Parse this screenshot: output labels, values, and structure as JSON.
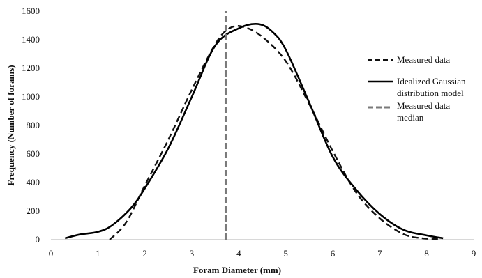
{
  "chart_data": {
    "type": "line",
    "title": "",
    "xlabel": "Foram Diameter (mm)",
    "ylabel": "Frequency (Number of forams)",
    "xlim": [
      0,
      9
    ],
    "ylim": [
      0,
      1600
    ],
    "xticks": [
      0,
      1,
      2,
      3,
      4,
      5,
      6,
      7,
      8,
      9
    ],
    "yticks": [
      0,
      200,
      400,
      600,
      800,
      1000,
      1200,
      1400,
      1600
    ],
    "grid": false,
    "legend_position": "right",
    "series": [
      {
        "name": "Measured data",
        "style": "dashed",
        "color": "#111111",
        "x": [
          1.25,
          1.6,
          2.0,
          2.5,
          3.0,
          3.5,
          3.8,
          4.1,
          4.5,
          5.0,
          5.5,
          6.0,
          6.5,
          7.0,
          7.5,
          7.9,
          8.3
        ],
        "y": [
          0,
          120,
          380,
          700,
          1050,
          1370,
          1480,
          1490,
          1420,
          1250,
          950,
          620,
          330,
          150,
          40,
          10,
          5
        ]
      },
      {
        "name": "Idealized Gaussian distribution model",
        "style": "solid",
        "color": "#000000",
        "x": [
          0.3,
          0.6,
          1.0,
          1.3,
          1.7,
          2.0,
          2.5,
          3.0,
          3.5,
          4.0,
          4.4,
          4.7,
          5.0,
          5.5,
          6.0,
          6.5,
          7.0,
          7.5,
          8.0,
          8.35
        ],
        "y": [
          10,
          35,
          55,
          100,
          220,
          360,
          640,
          1000,
          1360,
          1480,
          1510,
          1460,
          1330,
          960,
          580,
          350,
          180,
          70,
          30,
          10
        ]
      },
      {
        "name": "Measured data median",
        "style": "dashed-vertical",
        "color": "#7a7a7a",
        "x": [
          3.72,
          3.72
        ],
        "y": [
          0,
          1600
        ]
      }
    ],
    "legend": [
      {
        "label": "Measured data",
        "style": "dashed"
      },
      {
        "label": "Idealized Gaussian distribution model",
        "line1": "Idealized Gaussian",
        "line2": "distribution model",
        "style": "solid"
      },
      {
        "label": "Measured data median",
        "line1": "Measured data",
        "line2": "median",
        "style": "dashed-gray"
      }
    ]
  }
}
